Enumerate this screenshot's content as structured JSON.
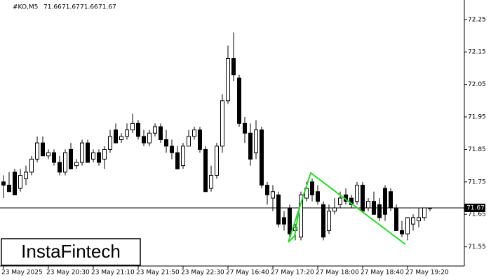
{
  "chart_data": {
    "type": "candlestick",
    "title": "#KO,M5",
    "title_values": [
      71.66,
      71.67,
      71.66,
      71.67
    ],
    "watermark": "InstaFintech",
    "categories": [
      "23 May 2025",
      null,
      null,
      null,
      null,
      null,
      null,
      null,
      "23 May 20:30",
      null,
      null,
      null,
      null,
      null,
      null,
      null,
      "23 May 21:10",
      null,
      null,
      null,
      null,
      null,
      null,
      null,
      "23 May 21:50",
      null,
      null,
      null,
      null,
      null,
      null,
      null,
      "23 May 22:30",
      null,
      null,
      null,
      null,
      null,
      null,
      null,
      "27 May 16:40",
      null,
      null,
      null,
      null,
      null,
      null,
      null,
      "27 May 17:20",
      null,
      null,
      null,
      null,
      null,
      null,
      null,
      "27 May 18:00",
      null,
      null,
      null,
      null,
      null,
      null,
      null,
      "27 May 18:40",
      null,
      null,
      null,
      null,
      null,
      null,
      null,
      "27 May 19:20",
      null,
      null,
      null,
      null
    ],
    "open": [
      71.75,
      71.74,
      71.78,
      71.73,
      71.76,
      71.78,
      71.82,
      71.87,
      71.83,
      71.84,
      71.81,
      71.78,
      71.85,
      71.8,
      71.81,
      71.87,
      71.82,
      71.84,
      71.82,
      71.85,
      71.91,
      71.88,
      71.89,
      71.91,
      71.93,
      71.89,
      71.87,
      71.9,
      71.92,
      71.88,
      71.86,
      71.84,
      71.8,
      71.86,
      71.89,
      71.91,
      71.85,
      71.73,
      71.77,
      71.86,
      72.0,
      72.13,
      72.07,
      71.93,
      71.9,
      71.84,
      71.91,
      71.74,
      71.7,
      71.71,
      71.64,
      71.67,
      71.6,
      71.58,
      71.7,
      71.75,
      71.72,
      71.68,
      71.6,
      71.66,
      71.68,
      71.71,
      71.7,
      71.69,
      71.74,
      71.67,
      71.69,
      71.68,
      71.73,
      71.72,
      71.67,
      71.6,
      71.59,
      71.62,
      71.63,
      71.64,
      71.67
    ],
    "high": [
      71.77,
      71.78,
      71.79,
      71.79,
      71.8,
      71.83,
      71.89,
      71.89,
      71.85,
      71.85,
      71.83,
      71.85,
      71.87,
      71.82,
      71.88,
      71.88,
      71.85,
      71.85,
      71.86,
      71.91,
      71.93,
      71.9,
      71.93,
      71.96,
      71.94,
      71.91,
      71.91,
      71.93,
      71.93,
      71.91,
      71.88,
      71.86,
      71.87,
      71.91,
      71.92,
      71.92,
      71.86,
      71.8,
      71.87,
      72.02,
      72.17,
      72.21,
      72.08,
      71.95,
      71.93,
      71.94,
      71.92,
      71.75,
      71.74,
      71.72,
      71.66,
      71.68,
      71.62,
      71.72,
      71.75,
      71.76,
      71.74,
      71.69,
      71.68,
      71.7,
      71.72,
      71.73,
      71.71,
      71.75,
      71.75,
      71.7,
      71.72,
      71.7,
      71.74,
      71.73,
      71.68,
      71.63,
      71.64,
      71.65,
      71.67,
      71.67,
      71.67
    ],
    "low": [
      71.7,
      71.72,
      71.71,
      71.72,
      71.74,
      71.77,
      71.81,
      71.83,
      71.82,
      71.8,
      71.77,
      71.77,
      71.79,
      71.79,
      71.8,
      71.81,
      71.81,
      71.8,
      71.79,
      71.84,
      71.87,
      71.87,
      71.88,
      71.9,
      71.88,
      71.86,
      71.86,
      71.89,
      71.87,
      71.84,
      71.82,
      71.79,
      71.79,
      71.86,
      71.88,
      71.84,
      71.72,
      71.72,
      71.76,
      71.84,
      71.99,
      72.06,
      71.92,
      71.87,
      71.8,
      71.82,
      71.73,
      71.68,
      71.66,
      71.61,
      71.6,
      71.58,
      71.57,
      71.57,
      71.69,
      71.69,
      71.68,
      71.57,
      71.59,
      71.65,
      71.67,
      71.68,
      71.67,
      71.68,
      71.66,
      71.66,
      71.65,
      71.63,
      71.63,
      71.66,
      71.6,
      71.58,
      71.57,
      71.6,
      71.61,
      71.63,
      71.66
    ],
    "close": [
      71.74,
      71.72,
      71.71,
      71.77,
      71.78,
      71.82,
      71.87,
      71.83,
      71.84,
      71.81,
      71.78,
      71.84,
      71.79,
      71.81,
      71.87,
      71.81,
      71.84,
      71.81,
      71.85,
      71.89,
      71.87,
      71.89,
      71.91,
      71.93,
      71.89,
      71.87,
      71.9,
      71.92,
      71.88,
      71.86,
      71.84,
      71.79,
      71.86,
      71.89,
      71.91,
      71.85,
      71.72,
      71.77,
      71.86,
      72.0,
      72.13,
      72.08,
      71.93,
      71.9,
      71.82,
      71.91,
      71.74,
      71.71,
      71.72,
      71.62,
      71.62,
      71.59,
      71.61,
      71.71,
      71.73,
      71.71,
      71.69,
      71.58,
      71.66,
      71.67,
      71.7,
      71.69,
      71.68,
      71.74,
      71.66,
      71.69,
      71.65,
      71.64,
      71.65,
      71.67,
      71.6,
      71.59,
      71.64,
      71.64,
      71.64,
      71.67,
      71.67
    ],
    "current_price": 71.67,
    "ylim": [
      71.491,
      72.31
    ],
    "yticks": [
      71.55,
      71.65,
      71.75,
      71.85,
      71.95,
      72.05,
      72.15,
      72.25
    ],
    "bull_color": "#ffffff",
    "bear_color": "#000000",
    "pattern_color": "#22dd22"
  }
}
